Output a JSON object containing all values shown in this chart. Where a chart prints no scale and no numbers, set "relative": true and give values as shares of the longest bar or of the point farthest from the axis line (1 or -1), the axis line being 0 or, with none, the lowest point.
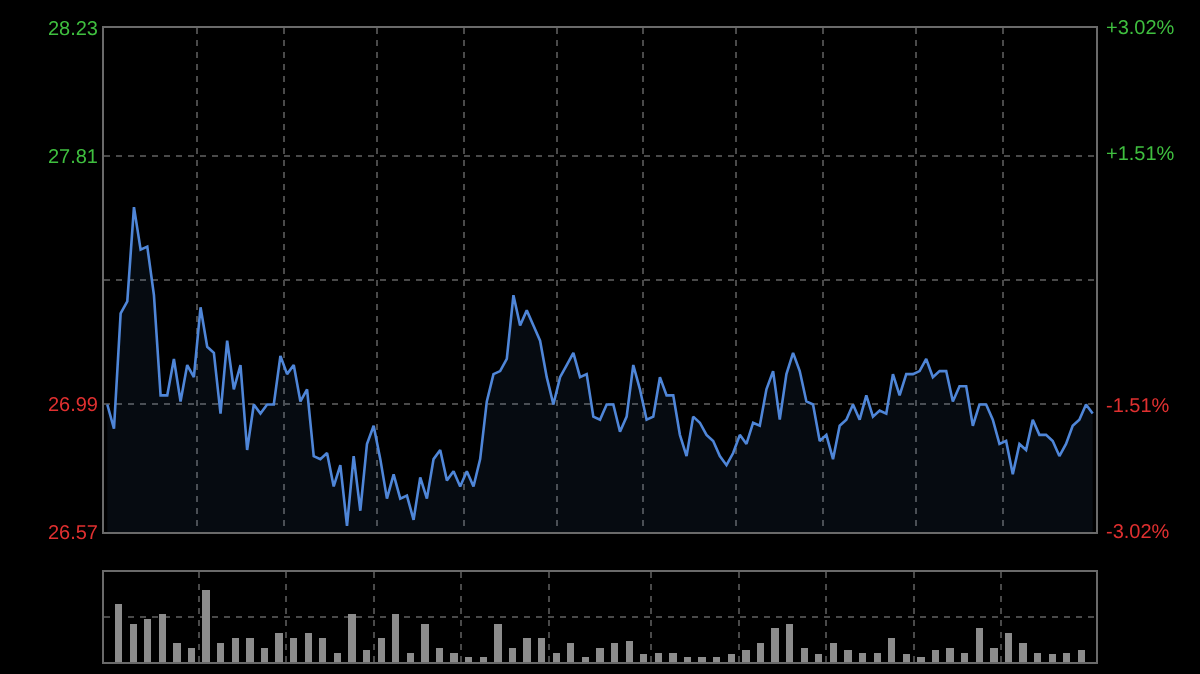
{
  "chart_data": [
    {
      "type": "area",
      "color": "#4f86d8",
      "categories": [
        null,
        null,
        null,
        null,
        null,
        null,
        null,
        null,
        null,
        null,
        null,
        null,
        null,
        null,
        null,
        null,
        null,
        null,
        null,
        null,
        null,
        null,
        null,
        null,
        null,
        null,
        null,
        null,
        null,
        null,
        null,
        null,
        null,
        null,
        null,
        null,
        null,
        null,
        null,
        null,
        null,
        null,
        null,
        null,
        null,
        null,
        null,
        null,
        null,
        null,
        null,
        null,
        null,
        null,
        null,
        null,
        null,
        null,
        null,
        null,
        null,
        null,
        null,
        null,
        null,
        null,
        null,
        null,
        null,
        null,
        null,
        null,
        null,
        null,
        null,
        null,
        null,
        null,
        null,
        null,
        null,
        null,
        null,
        null,
        null,
        null,
        null,
        null,
        null,
        null,
        null,
        null,
        null,
        null,
        null,
        null,
        null,
        null,
        null,
        null,
        null,
        null,
        null,
        null,
        null,
        null,
        null,
        null,
        null,
        null,
        null,
        null,
        null,
        null,
        null,
        null,
        null,
        null,
        null,
        null,
        null,
        null,
        null,
        null,
        null,
        null,
        null,
        null,
        null,
        null,
        null,
        null,
        null,
        null,
        null,
        null,
        null,
        null,
        null,
        null,
        null,
        null,
        null,
        null,
        null,
        null,
        null,
        null,
        null
      ],
      "values": [
        26.99,
        26.91,
        27.29,
        27.33,
        27.64,
        27.5,
        27.51,
        27.35,
        27.02,
        27.02,
        27.14,
        27.0,
        27.12,
        27.08,
        27.31,
        27.18,
        27.16,
        26.96,
        27.2,
        27.04,
        27.12,
        26.84,
        26.99,
        26.96,
        26.99,
        26.99,
        27.15,
        27.09,
        27.12,
        27.0,
        27.04,
        26.82,
        26.81,
        26.83,
        26.72,
        26.79,
        26.59,
        26.82,
        26.64,
        26.86,
        26.92,
        26.81,
        26.68,
        26.76,
        26.68,
        26.69,
        26.61,
        26.75,
        26.68,
        26.81,
        26.84,
        26.74,
        26.77,
        26.72,
        26.77,
        26.72,
        26.81,
        27.0,
        27.09,
        27.1,
        27.14,
        27.35,
        27.25,
        27.3,
        27.25,
        27.2,
        27.08,
        26.99,
        27.08,
        27.12,
        27.16,
        27.08,
        27.09,
        26.95,
        26.94,
        26.99,
        26.99,
        26.9,
        26.95,
        27.12,
        27.04,
        26.94,
        26.95,
        27.08,
        27.02,
        27.02,
        26.89,
        26.82,
        26.95,
        26.93,
        26.89,
        26.87,
        26.82,
        26.79,
        26.83,
        26.89,
        26.86,
        26.93,
        26.92,
        27.04,
        27.1,
        26.94,
        27.09,
        27.16,
        27.1,
        27.0,
        26.99,
        26.87,
        26.89,
        26.81,
        26.92,
        26.94,
        26.99,
        26.94,
        27.02,
        26.95,
        26.97,
        26.96,
        27.09,
        27.02,
        27.09,
        27.09,
        27.1,
        27.14,
        27.08,
        27.1,
        27.1,
        27.0,
        27.05,
        27.05,
        26.92,
        26.99,
        26.99,
        26.94,
        26.86,
        26.87,
        26.76,
        26.86,
        26.84,
        26.94,
        26.89,
        26.89,
        26.87,
        26.82,
        26.86,
        26.92,
        26.94,
        26.99,
        26.96
      ],
      "ylim": [
        26.57,
        28.23
      ],
      "yticks": [
        26.57,
        26.99,
        {
          "value": 27.4,
          "label": null
        },
        27.81,
        28.23
      ],
      "y2lim": [
        -3.02,
        3.02
      ],
      "y2ticks": [
        {
          "value": -3.02,
          "label": "-3.02%"
        },
        {
          "value": -1.51,
          "label": "-1.51%"
        },
        {
          "value": 0,
          "label": null
        },
        {
          "value": 1.51,
          "label": "+1.51%"
        },
        {
          "value": 3.02,
          "label": "+3.02%"
        }
      ],
      "grid": true,
      "legend": false
    },
    {
      "type": "bar",
      "relative": true,
      "color": "#8c8c8c",
      "categories": [
        null,
        null,
        null,
        null,
        null,
        null,
        null,
        null,
        null,
        null,
        null,
        null,
        null,
        null,
        null,
        null,
        null,
        null,
        null,
        null,
        null,
        null,
        null,
        null,
        null,
        null,
        null,
        null,
        null,
        null,
        null,
        null,
        null,
        null,
        null,
        null,
        null,
        null,
        null,
        null,
        null,
        null,
        null,
        null,
        null,
        null,
        null,
        null,
        null,
        null,
        null,
        null,
        null,
        null,
        null,
        null,
        null,
        null,
        null,
        null,
        null,
        null,
        null,
        null,
        null,
        null,
        null
      ],
      "values": [
        0.8,
        0.53,
        0.6,
        0.67,
        0.27,
        0.2,
        1,
        0.27,
        0.33,
        0.33,
        0.2,
        0.4,
        0.33,
        0.4,
        0.33,
        0.13,
        0.67,
        0.16,
        0.33,
        0.67,
        0.13,
        0.53,
        0.2,
        0.13,
        0.07,
        0.07,
        0.53,
        0.2,
        0.33,
        0.33,
        0.13,
        0.27,
        0.07,
        0.2,
        0.27,
        0.29,
        0.11,
        0.13,
        0.13,
        0.07,
        0.07,
        0.07,
        0.11,
        0.16,
        0.27,
        0.47,
        0.53,
        0.2,
        0.11,
        0.27,
        0.16,
        0.13,
        0.13,
        0.33,
        0.11,
        0.07,
        0.16,
        0.2,
        0.13,
        0.47,
        0.2,
        0.4,
        0.27,
        0.13,
        0.11,
        0.13,
        0.16
      ],
      "grid": true,
      "legend": false
    }
  ]
}
